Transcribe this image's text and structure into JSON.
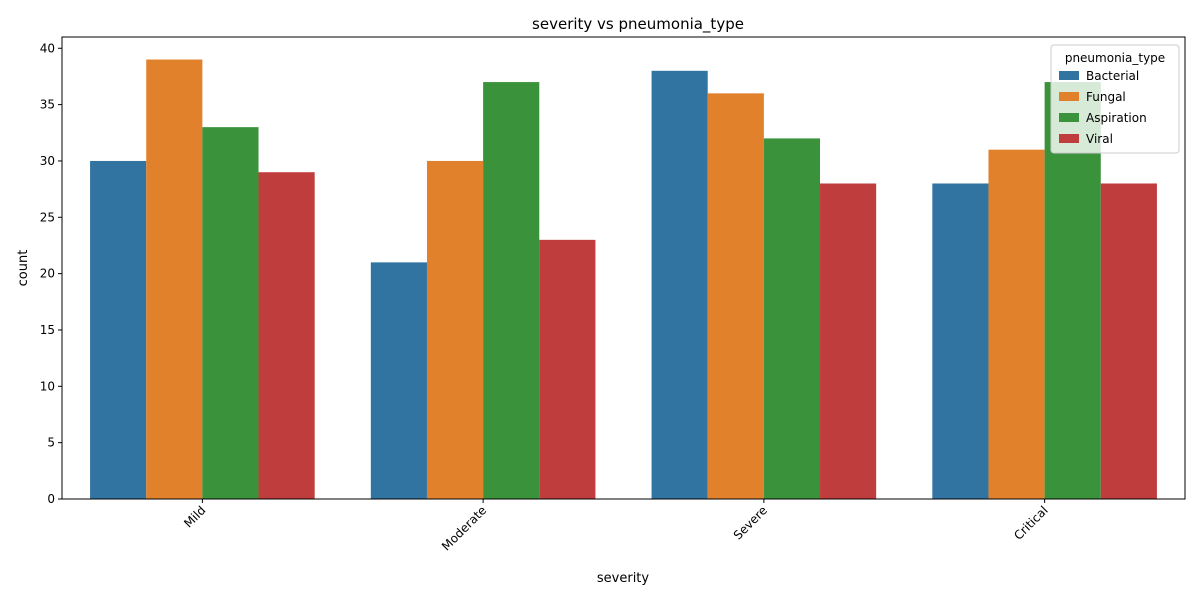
{
  "chart_data": {
    "type": "bar",
    "title": "severity vs pneumonia_type",
    "xlabel": "severity",
    "ylabel": "count",
    "categories": [
      "Mild",
      "Moderate",
      "Severe",
      "Critical"
    ],
    "series": [
      {
        "name": "Bacterial",
        "color": "#3274a1",
        "values": [
          30,
          21,
          38,
          28
        ]
      },
      {
        "name": "Fungal",
        "color": "#e1812c",
        "values": [
          39,
          30,
          36,
          31
        ]
      },
      {
        "name": "Aspiration",
        "color": "#3a923a",
        "values": [
          33,
          37,
          32,
          37
        ]
      },
      {
        "name": "Viral",
        "color": "#c03d3e",
        "values": [
          29,
          23,
          28,
          28
        ]
      }
    ],
    "ylim": [
      0,
      41
    ],
    "yticks": [
      0,
      5,
      10,
      15,
      20,
      25,
      30,
      35,
      40
    ],
    "xtick_rotation": -45,
    "legend": {
      "title": "pneumonia_type",
      "position": "top-right"
    },
    "grid": false
  }
}
